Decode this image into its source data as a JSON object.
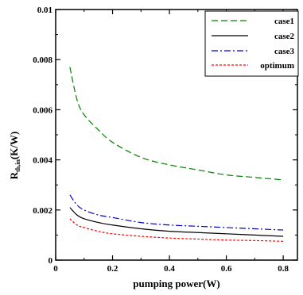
{
  "chart_data": {
    "type": "line",
    "title": "",
    "xlabel": "pumping power(W)",
    "ylabel_main": "R",
    "ylabel_sub": "th,in",
    "ylabel_unit": "(K/W)",
    "xlim": [
      0,
      0.85
    ],
    "ylim": [
      0,
      0.01
    ],
    "xticks": [
      0,
      0.2,
      0.4,
      0.6,
      0.8
    ],
    "xtick_labels": [
      "0",
      "0.2",
      "0.4",
      "0.6",
      "0.8"
    ],
    "yticks": [
      0,
      0.002,
      0.004,
      0.006,
      0.008,
      0.01
    ],
    "ytick_labels": [
      "0",
      "0.002",
      "0.004",
      "0.006",
      "0.008",
      "0.01"
    ],
    "grid": false,
    "legend_position": "top-right",
    "series": [
      {
        "name": "case1",
        "color": "#008000",
        "dash": "dashed",
        "x": [
          0.05,
          0.075,
          0.1,
          0.15,
          0.2,
          0.3,
          0.4,
          0.5,
          0.6,
          0.7,
          0.8
        ],
        "y": [
          0.0077,
          0.0064,
          0.0058,
          0.0052,
          0.0047,
          0.0041,
          0.0038,
          0.0036,
          0.0034,
          0.0033,
          0.0032
        ]
      },
      {
        "name": "case2",
        "color": "#000000",
        "dash": "solid",
        "x": [
          0.05,
          0.075,
          0.1,
          0.15,
          0.2,
          0.3,
          0.4,
          0.5,
          0.6,
          0.7,
          0.8
        ],
        "y": [
          0.0021,
          0.0018,
          0.00165,
          0.0015,
          0.0014,
          0.00125,
          0.00115,
          0.0011,
          0.00105,
          0.001,
          0.00095
        ]
      },
      {
        "name": "case3",
        "color": "#0000cc",
        "dash": "dashdot",
        "x": [
          0.05,
          0.075,
          0.1,
          0.15,
          0.2,
          0.3,
          0.4,
          0.5,
          0.6,
          0.7,
          0.8
        ],
        "y": [
          0.0026,
          0.0022,
          0.002,
          0.0018,
          0.0017,
          0.0015,
          0.0014,
          0.00135,
          0.0013,
          0.00125,
          0.0012
        ]
      },
      {
        "name": "optimum",
        "color": "#ff0000",
        "dash": "dotted",
        "x": [
          0.05,
          0.075,
          0.1,
          0.15,
          0.2,
          0.3,
          0.4,
          0.5,
          0.6,
          0.7,
          0.8
        ],
        "y": [
          0.00165,
          0.0014,
          0.0013,
          0.00115,
          0.00105,
          0.00095,
          0.00088,
          0.00084,
          0.0008,
          0.00078,
          0.00075
        ]
      }
    ]
  }
}
